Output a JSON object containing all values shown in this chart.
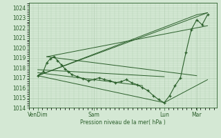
{
  "background_color": "#d4e8d4",
  "grid_color": "#b0ccb0",
  "line_color": "#2a5e2a",
  "ylabel": "Pression niveau de la mer( hPa )",
  "ylim": [
    1014,
    1024.5
  ],
  "yticks": [
    1014,
    1015,
    1016,
    1017,
    1018,
    1019,
    1020,
    1021,
    1022,
    1023,
    1024
  ],
  "xtick_labels": [
    "VenDim",
    "Sam",
    "Lun",
    "Mar"
  ],
  "xtick_positions": [
    0.05,
    0.36,
    0.75,
    0.93
  ],
  "lines": [
    {
      "x": [
        0.05,
        0.08,
        0.1,
        0.12,
        0.14,
        0.16,
        0.18,
        0.2,
        0.22,
        0.24,
        0.27,
        0.3,
        0.33,
        0.36,
        0.39,
        0.42,
        0.45,
        0.48,
        0.51,
        0.54,
        0.57,
        0.6,
        0.63,
        0.66,
        0.69,
        0.72,
        0.75,
        0.78,
        0.81,
        0.84,
        0.87,
        0.9,
        0.93,
        0.96,
        0.99
      ],
      "y": [
        1017.2,
        1017.6,
        1018.5,
        1018.9,
        1019.1,
        1018.7,
        1018.3,
        1017.9,
        1017.6,
        1017.3,
        1017.1,
        1016.9,
        1016.7,
        1016.8,
        1017.0,
        1016.8,
        1016.7,
        1016.5,
        1016.6,
        1016.8,
        1016.5,
        1016.3,
        1016.0,
        1015.7,
        1015.2,
        1014.8,
        1014.5,
        1015.2,
        1016.2,
        1017.0,
        1019.5,
        1021.8,
        1022.8,
        1022.3,
        1023.3
      ]
    },
    {
      "x": [
        0.05,
        0.99
      ],
      "y": [
        1017.2,
        1023.5
      ]
    },
    {
      "x": [
        0.05,
        0.93,
        0.99
      ],
      "y": [
        1017.2,
        1023.3,
        1023.5
      ]
    },
    {
      "x": [
        0.1,
        0.99
      ],
      "y": [
        1019.1,
        1022.2
      ]
    },
    {
      "x": [
        0.1,
        0.93
      ],
      "y": [
        1019.1,
        1017.2
      ]
    },
    {
      "x": [
        0.05,
        0.75,
        0.99
      ],
      "y": [
        1017.2,
        1014.5,
        1016.8
      ]
    },
    {
      "x": [
        0.05,
        0.63
      ],
      "y": [
        1017.5,
        1016.2
      ]
    },
    {
      "x": [
        0.05,
        0.75
      ],
      "y": [
        1017.8,
        1017.1
      ]
    }
  ]
}
